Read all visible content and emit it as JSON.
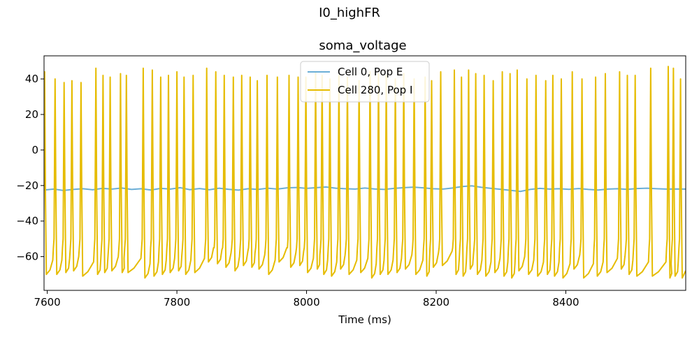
{
  "chart_data": {
    "type": "line",
    "suptitle": "I0_highFR",
    "title": "soma_voltage",
    "xlabel": "Time (ms)",
    "ylabel": "",
    "xlim": [
      7595,
      8585
    ],
    "ylim": [
      -79,
      53
    ],
    "xticks": [
      7600,
      7800,
      8000,
      8200,
      8400
    ],
    "yticks": [
      -60,
      -40,
      -20,
      0,
      20,
      40
    ],
    "legend_position": "top-center",
    "grid": false,
    "series": [
      {
        "name": "Cell 0, Pop E",
        "color": "#6baed6",
        "baseline": -22,
        "x": [
          7595,
          7610,
          7625,
          7640,
          7655,
          7670,
          7685,
          7700,
          7715,
          7730,
          7745,
          7760,
          7775,
          7790,
          7805,
          7820,
          7835,
          7850,
          7865,
          7880,
          7895,
          7910,
          7925,
          7940,
          7955,
          7970,
          7985,
          8000,
          8015,
          8030,
          8045,
          8060,
          8075,
          8090,
          8105,
          8120,
          8135,
          8150,
          8165,
          8180,
          8195,
          8210,
          8225,
          8240,
          8255,
          8270,
          8285,
          8300,
          8315,
          8330,
          8345,
          8360,
          8375,
          8390,
          8405,
          8420,
          8435,
          8450,
          8465,
          8480,
          8495,
          8510,
          8525,
          8540,
          8555,
          8570,
          8585
        ],
        "y": [
          -22.5,
          -22,
          -22.8,
          -22.2,
          -21.8,
          -22.4,
          -21.6,
          -22,
          -21.4,
          -22.2,
          -21.8,
          -22.5,
          -21.6,
          -22,
          -21.2,
          -22.3,
          -21.7,
          -22.4,
          -21.5,
          -22.1,
          -22.6,
          -21.8,
          -22.2,
          -21.5,
          -22,
          -21.3,
          -21.1,
          -21.6,
          -21.2,
          -20.8,
          -21.5,
          -21.8,
          -22,
          -21.4,
          -21.9,
          -22.2,
          -21.6,
          -21.2,
          -20.9,
          -21.3,
          -21.8,
          -22,
          -21.4,
          -20.6,
          -20.2,
          -21,
          -21.6,
          -22.1,
          -22.7,
          -23.3,
          -22.2,
          -21.6,
          -22,
          -21.8,
          -22.1,
          -21.7,
          -22.2,
          -22.5,
          -22,
          -21.8,
          -22.1,
          -21.7,
          -21.5,
          -21.8,
          -22,
          -21.9,
          -22
        ]
      },
      {
        "name": "Cell 280, Pop I",
        "color": "#e6bc00",
        "spike_times": [
          7596,
          7612,
          7626,
          7638,
          7652,
          7675,
          7686,
          7697,
          7713,
          7722,
          7748,
          7762,
          7775,
          7787,
          7800,
          7811,
          7825,
          7846,
          7860,
          7873,
          7887,
          7900,
          7913,
          7924,
          7939,
          7955,
          7973,
          7987,
          7999,
          8014,
          8024,
          8036,
          8050,
          8063,
          8081,
          8098,
          8111,
          8123,
          8137,
          8150,
          8166,
          8183,
          8193,
          8207,
          8228,
          8239,
          8250,
          8261,
          8274,
          8288,
          8302,
          8314,
          8325,
          8340,
          8354,
          8369,
          8380,
          8393,
          8410,
          8425,
          8446,
          8461,
          8483,
          8495,
          8507,
          8531,
          8558,
          8566,
          8577
        ],
        "spike_peaks": [
          44,
          40,
          38,
          39,
          38,
          46,
          42,
          41,
          43,
          42,
          46,
          45,
          41,
          42,
          44,
          41,
          42,
          46,
          44,
          42,
          41,
          42,
          41,
          39,
          42,
          41,
          42,
          41,
          41,
          44,
          42,
          40,
          42,
          41,
          39,
          44,
          43,
          42,
          40,
          43,
          40,
          41,
          39,
          44,
          45,
          41,
          45,
          43,
          42,
          39,
          44,
          43,
          45,
          40,
          42,
          39,
          42,
          40,
          44,
          40,
          41,
          43,
          44,
          42,
          42,
          46,
          47,
          46,
          40
        ],
        "trough_values": [
          -70,
          -70,
          -69,
          -68,
          -71,
          -70,
          -69,
          -68,
          -69,
          -69,
          -72,
          -71,
          -70,
          -69,
          -68,
          -70,
          -69,
          -63,
          -64,
          -66,
          -68,
          -65,
          -66,
          -67,
          -70,
          -63,
          -66,
          -65,
          -69,
          -67,
          -70,
          -71,
          -67,
          -70,
          -69,
          -72,
          -70,
          -70,
          -69,
          -67,
          -70,
          -71,
          -66,
          -65,
          -70,
          -71,
          -67,
          -70,
          -71,
          -69,
          -71,
          -72,
          -68,
          -70,
          -71,
          -70,
          -71,
          -72,
          -67,
          -72,
          -71,
          -69,
          -67,
          -70,
          -71,
          -71,
          -72,
          -71
        ]
      }
    ]
  }
}
